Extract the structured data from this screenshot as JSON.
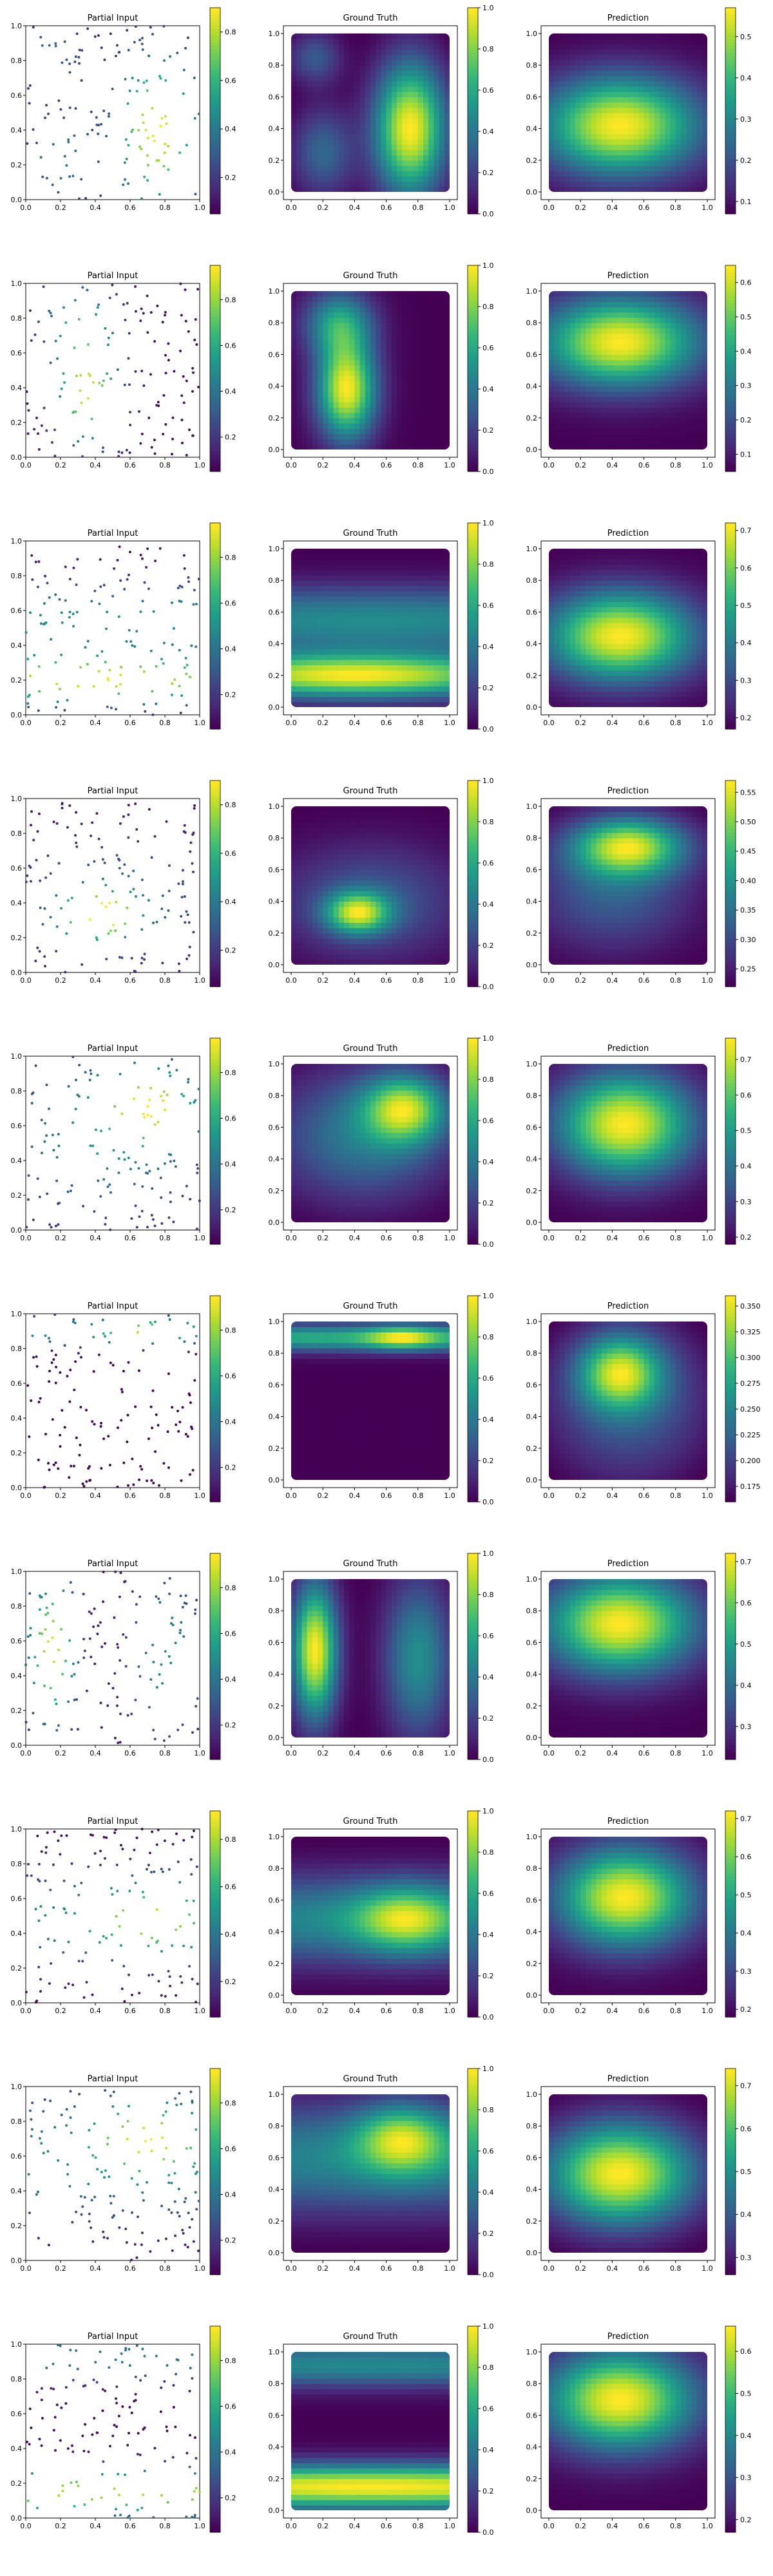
{
  "chart_data": {
    "type": "heatmap",
    "rows": 10,
    "panel_titles": [
      "Partial Input",
      "Ground Truth",
      "Prediction"
    ],
    "axis_ticks": [
      "0.0",
      "0.2",
      "0.4",
      "0.6",
      "0.8",
      "1.0"
    ],
    "colormap": "viridis",
    "colormap_stops": [
      "#440154",
      "#482878",
      "#3e4989",
      "#31688e",
      "#26828e",
      "#1f9e89",
      "#35b779",
      "#6ece58",
      "#b5de2b",
      "#fde725"
    ],
    "scatter_point_count": 150,
    "samples": [
      {
        "partial_input_cbar_ticks": [
          "0.2",
          "0.4",
          "0.6",
          "0.8"
        ],
        "partial_input_vrange": [
          0.05,
          0.9
        ],
        "ground_truth_cbar_ticks": [
          "0.0",
          "0.2",
          "0.4",
          "0.6",
          "0.8",
          "1.0"
        ],
        "ground_truth_vrange": [
          0.0,
          1.0
        ],
        "ground_truth_field": {
          "bumps": [
            {
              "cx": 0.75,
              "cy": 0.4,
              "sx": 0.16,
              "sy": 0.3,
              "a": 1.0
            },
            {
              "cx": 0.2,
              "cy": 0.25,
              "sx": 0.14,
              "sy": 0.2,
              "a": 0.35
            },
            {
              "cx": 0.15,
              "cy": 0.85,
              "sx": 0.12,
              "sy": 0.12,
              "a": 0.3
            }
          ],
          "base": 0.1
        },
        "prediction_cbar_ticks": [
          "0.1",
          "0.2",
          "0.3",
          "0.4",
          "0.5"
        ],
        "prediction_vrange": [
          0.07,
          0.57
        ],
        "prediction_field": {
          "bumps": [
            {
              "cx": 0.45,
              "cy": 0.42,
              "sx": 0.35,
              "sy": 0.22,
              "a": 0.45
            }
          ],
          "base": 0.08
        }
      },
      {
        "partial_input_cbar_ticks": [
          "0.2",
          "0.4",
          "0.6",
          "0.8"
        ],
        "partial_input_vrange": [
          0.05,
          0.95
        ],
        "ground_truth_cbar_ticks": [
          "0.0",
          "0.2",
          "0.4",
          "0.6",
          "0.8",
          "1.0"
        ],
        "ground_truth_vrange": [
          0.0,
          1.0
        ],
        "ground_truth_field": {
          "bumps": [
            {
              "cx": 0.35,
              "cy": 0.38,
              "sx": 0.13,
              "sy": 0.22,
              "a": 1.0
            },
            {
              "cx": 0.3,
              "cy": 0.8,
              "sx": 0.15,
              "sy": 0.15,
              "a": 0.55
            }
          ],
          "base": 0.05
        },
        "prediction_cbar_ticks": [
          "0.1",
          "0.2",
          "0.3",
          "0.4",
          "0.5",
          "0.6"
        ],
        "prediction_vrange": [
          0.05,
          0.65
        ],
        "prediction_field": {
          "bumps": [
            {
              "cx": 0.45,
              "cy": 0.68,
              "sx": 0.35,
              "sy": 0.2,
              "a": 0.55
            }
          ],
          "base": 0.07
        }
      },
      {
        "partial_input_cbar_ticks": [
          "0.2",
          "0.4",
          "0.6",
          "0.8"
        ],
        "partial_input_vrange": [
          0.05,
          0.95
        ],
        "ground_truth_cbar_ticks": [
          "0.0",
          "0.2",
          "0.4",
          "0.6",
          "0.8",
          "1.0"
        ],
        "ground_truth_vrange": [
          0.0,
          1.0
        ],
        "ground_truth_field": {
          "bands": [
            {
              "cy": 0.2,
              "sy": 0.1,
              "a": 1.0,
              "cx": 0.4,
              "sx": 0.4
            },
            {
              "cy": 0.55,
              "sy": 0.15,
              "a": 0.5,
              "cx": 0.5,
              "sx": 0.8
            }
          ],
          "base": 0.05
        },
        "prediction_cbar_ticks": [
          "0.2",
          "0.3",
          "0.4",
          "0.5",
          "0.6",
          "0.7"
        ],
        "prediction_vrange": [
          0.17,
          0.72
        ],
        "prediction_field": {
          "bumps": [
            {
              "cx": 0.45,
              "cy": 0.45,
              "sx": 0.33,
              "sy": 0.2,
              "a": 0.52
            }
          ],
          "base": 0.18
        }
      },
      {
        "partial_input_cbar_ticks": [
          "0.2",
          "0.4",
          "0.6",
          "0.8"
        ],
        "partial_input_vrange": [
          0.05,
          0.9
        ],
        "ground_truth_cbar_ticks": [
          "0.0",
          "0.2",
          "0.4",
          "0.6",
          "0.8",
          "1.0"
        ],
        "ground_truth_vrange": [
          0.0,
          1.0
        ],
        "ground_truth_field": {
          "bumps": [
            {
              "cx": 0.42,
              "cy": 0.33,
              "sx": 0.14,
              "sy": 0.09,
              "a": 1.0
            },
            {
              "cx": 0.5,
              "cy": 0.4,
              "sx": 0.4,
              "sy": 0.25,
              "a": 0.4
            }
          ],
          "base": 0.04
        },
        "prediction_cbar_ticks": [
          "0.25",
          "0.30",
          "0.35",
          "0.40",
          "0.45",
          "0.50",
          "0.55"
        ],
        "prediction_vrange": [
          0.22,
          0.57
        ],
        "prediction_field": {
          "bumps": [
            {
              "cx": 0.5,
              "cy": 0.75,
              "sx": 0.25,
              "sy": 0.13,
              "a": 0.33
            },
            {
              "cx": 0.4,
              "cy": 0.45,
              "sx": 0.35,
              "sy": 0.25,
              "a": 0.12
            }
          ],
          "base": 0.23
        }
      },
      {
        "partial_input_cbar_ticks": [
          "0.2",
          "0.4",
          "0.6",
          "0.8"
        ],
        "partial_input_vrange": [
          0.05,
          0.95
        ],
        "ground_truth_cbar_ticks": [
          "0.0",
          "0.2",
          "0.4",
          "0.6",
          "0.8",
          "1.0"
        ],
        "ground_truth_vrange": [
          0.0,
          1.0
        ],
        "ground_truth_field": {
          "bumps": [
            {
              "cx": 0.72,
              "cy": 0.72,
              "sx": 0.18,
              "sy": 0.15,
              "a": 0.75
            },
            {
              "cx": 0.45,
              "cy": 0.55,
              "sx": 0.4,
              "sy": 0.3,
              "a": 0.45
            }
          ],
          "base": 0.1
        },
        "prediction_cbar_ticks": [
          "0.2",
          "0.3",
          "0.4",
          "0.5",
          "0.6",
          "0.7"
        ],
        "prediction_vrange": [
          0.18,
          0.76
        ],
        "prediction_field": {
          "bumps": [
            {
              "cx": 0.48,
              "cy": 0.62,
              "sx": 0.3,
              "sy": 0.23,
              "a": 0.56
            }
          ],
          "base": 0.2
        }
      },
      {
        "partial_input_cbar_ticks": [
          "0.2",
          "0.4",
          "0.6",
          "0.8"
        ],
        "partial_input_vrange": [
          0.05,
          0.95
        ],
        "ground_truth_cbar_ticks": [
          "0.0",
          "0.2",
          "0.4",
          "0.6",
          "0.8",
          "1.0"
        ],
        "ground_truth_vrange": [
          0.0,
          1.0
        ],
        "ground_truth_field": {
          "bands": [
            {
              "cy": 0.9,
              "sy": 0.06,
              "a": 0.6,
              "cx": 0.5,
              "sx": 0.9
            }
          ],
          "bumps": [
            {
              "cx": 0.7,
              "cy": 0.9,
              "sx": 0.15,
              "sy": 0.05,
              "a": 0.4
            }
          ],
          "base": 0.02
        },
        "prediction_cbar_ticks": [
          "0.175",
          "0.200",
          "0.225",
          "0.250",
          "0.275",
          "0.300",
          "0.325",
          "0.350"
        ],
        "prediction_vrange": [
          0.16,
          0.36
        ],
        "prediction_field": {
          "bumps": [
            {
              "cx": 0.45,
              "cy": 0.68,
              "sx": 0.18,
              "sy": 0.16,
              "a": 0.15
            },
            {
              "cx": 0.5,
              "cy": 0.5,
              "sx": 0.4,
              "sy": 0.4,
              "a": 0.08
            }
          ],
          "base": 0.16
        }
      },
      {
        "partial_input_cbar_ticks": [
          "0.2",
          "0.4",
          "0.6",
          "0.8"
        ],
        "partial_input_vrange": [
          0.05,
          0.95
        ],
        "ground_truth_cbar_ticks": [
          "0.0",
          "0.2",
          "0.4",
          "0.6",
          "0.8",
          "1.0"
        ],
        "ground_truth_vrange": [
          0.0,
          1.0
        ],
        "ground_truth_field": {
          "bumps": [
            {
              "cx": 0.15,
              "cy": 0.55,
              "sx": 0.1,
              "sy": 0.3,
              "a": 1.0
            },
            {
              "cx": 0.8,
              "cy": 0.5,
              "sx": 0.15,
              "sy": 0.35,
              "a": 0.5
            }
          ],
          "base": 0.05
        },
        "prediction_cbar_ticks": [
          "0.3",
          "0.4",
          "0.5",
          "0.6",
          "0.7"
        ],
        "prediction_vrange": [
          0.22,
          0.72
        ],
        "prediction_field": {
          "bumps": [
            {
              "cx": 0.45,
              "cy": 0.72,
              "sx": 0.33,
              "sy": 0.22,
              "a": 0.48
            }
          ],
          "base": 0.22
        }
      },
      {
        "partial_input_cbar_ticks": [
          "0.2",
          "0.4",
          "0.6",
          "0.8"
        ],
        "partial_input_vrange": [
          0.05,
          0.92
        ],
        "ground_truth_cbar_ticks": [
          "0.0",
          "0.2",
          "0.4",
          "0.6",
          "0.8",
          "1.0"
        ],
        "ground_truth_vrange": [
          0.0,
          1.0
        ],
        "ground_truth_field": {
          "bumps": [
            {
              "cx": 0.72,
              "cy": 0.48,
              "sx": 0.22,
              "sy": 0.14,
              "a": 0.55
            }
          ],
          "bands": [
            {
              "cy": 0.48,
              "sy": 0.2,
              "a": 0.5,
              "cx": 0.5,
              "sx": 0.9
            }
          ],
          "base": 0.02
        },
        "prediction_cbar_ticks": [
          "0.2",
          "0.3",
          "0.4",
          "0.5",
          "0.6",
          "0.7"
        ],
        "prediction_vrange": [
          0.18,
          0.72
        ],
        "prediction_field": {
          "bumps": [
            {
              "cx": 0.48,
              "cy": 0.62,
              "sx": 0.3,
              "sy": 0.22,
              "a": 0.52
            }
          ],
          "base": 0.19
        }
      },
      {
        "partial_input_cbar_ticks": [
          "0.2",
          "0.4",
          "0.6",
          "0.8"
        ],
        "partial_input_vrange": [
          0.05,
          0.95
        ],
        "ground_truth_cbar_ticks": [
          "0.0",
          "0.2",
          "0.4",
          "0.6",
          "0.8",
          "1.0"
        ],
        "ground_truth_vrange": [
          0.0,
          1.0
        ],
        "ground_truth_field": {
          "bumps": [
            {
              "cx": 0.7,
              "cy": 0.72,
              "sx": 0.2,
              "sy": 0.15,
              "a": 0.6
            }
          ],
          "bands": [
            {
              "cy": 0.6,
              "sy": 0.25,
              "a": 0.5,
              "cx": 0.5,
              "sx": 0.9
            }
          ],
          "base": 0.05
        },
        "prediction_cbar_ticks": [
          "0.3",
          "0.4",
          "0.5",
          "0.6",
          "0.7"
        ],
        "prediction_vrange": [
          0.26,
          0.74
        ],
        "prediction_field": {
          "bumps": [
            {
              "cx": 0.45,
              "cy": 0.5,
              "sx": 0.33,
              "sy": 0.23,
              "a": 0.46
            }
          ],
          "base": 0.27
        }
      },
      {
        "partial_input_cbar_ticks": [
          "0.2",
          "0.4",
          "0.6",
          "0.8"
        ],
        "partial_input_vrange": [
          0.05,
          0.95
        ],
        "ground_truth_cbar_ticks": [
          "0.0",
          "0.2",
          "0.4",
          "0.6",
          "0.8",
          "1.0"
        ],
        "ground_truth_vrange": [
          0.0,
          1.0
        ],
        "ground_truth_field": {
          "bands": [
            {
              "cy": 0.15,
              "sy": 0.1,
              "a": 0.95,
              "cx": 0.5,
              "sx": 0.9
            },
            {
              "cy": 0.92,
              "sy": 0.1,
              "a": 0.45,
              "cx": 0.5,
              "sx": 0.9
            }
          ],
          "base": 0.03
        },
        "prediction_cbar_ticks": [
          "0.2",
          "0.3",
          "0.4",
          "0.5",
          "0.6"
        ],
        "prediction_vrange": [
          0.17,
          0.66
        ],
        "prediction_field": {
          "bumps": [
            {
              "cx": 0.45,
              "cy": 0.7,
              "sx": 0.33,
              "sy": 0.22,
              "a": 0.46
            }
          ],
          "base": 0.18
        }
      }
    ]
  }
}
